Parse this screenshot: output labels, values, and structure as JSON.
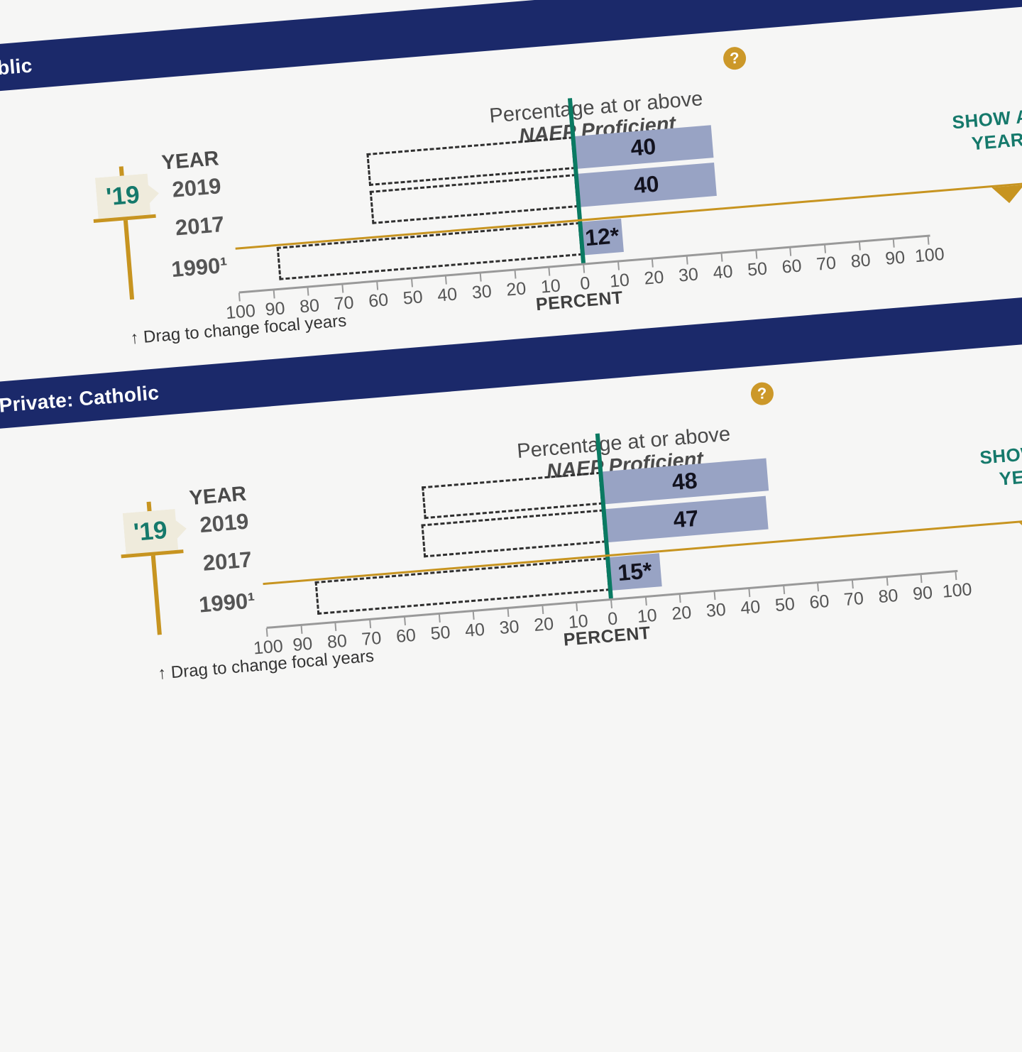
{
  "app": {
    "background": "#F6F6F5"
  },
  "colors": {
    "navy": "#1B296A",
    "gold": "#C79420",
    "gold_icon": "#CC9829",
    "teal_line": "#0A7A62",
    "teal_text": "#15796B",
    "bar_fill": "#98A3C4",
    "bar_label": "#12121E",
    "flag_bg": "#EFEBDC",
    "axis": "#999999",
    "text_gray": "#555555",
    "text_gray2": "#4A4A4A",
    "text_dark": "#3F3F3F"
  },
  "labels": {
    "year_column_header": "YEAR",
    "percent_axis_label": "PERCENT",
    "show_all_years": "SHOW ALL YEARS",
    "drag_hint": "↑ Drag to change focal years",
    "chart_title_line1": "Percentage at or above",
    "chart_title_line2": "NAEP Proficient",
    "help_icon": "?",
    "focal_year_flag": "'19"
  },
  "panels": [
    {
      "title": "Public"
    },
    {
      "title": "Private: Catholic"
    }
  ],
  "chart_data": [
    {
      "type": "bar",
      "orientation": "horizontal",
      "group": "Public",
      "title": "Percentage at or above NAEP Proficient",
      "categories": [
        "2019",
        "2017",
        "1990¹"
      ],
      "values": [
        40,
        40,
        12
      ],
      "value_labels": [
        "40",
        "40",
        "12*"
      ],
      "below_proficient_values": [
        60,
        60,
        88
      ],
      "focal_year": "'19",
      "axis": {
        "label": "PERCENT",
        "range": [
          -100,
          100
        ],
        "tick_step": 10,
        "tick_labels": [
          100,
          90,
          80,
          70,
          60,
          50,
          40,
          30,
          20,
          10,
          0,
          10,
          20,
          30,
          40,
          50,
          60,
          70,
          80,
          90,
          100
        ]
      }
    },
    {
      "type": "bar",
      "orientation": "horizontal",
      "group": "Private: Catholic",
      "title": "Percentage at or above NAEP Proficient",
      "categories": [
        "2019",
        "2017",
        "1990¹"
      ],
      "values": [
        48,
        47,
        15
      ],
      "value_labels": [
        "48",
        "47",
        "15*"
      ],
      "below_proficient_values": [
        52,
        53,
        85
      ],
      "focal_year": "'19",
      "axis": {
        "label": "PERCENT",
        "range": [
          -100,
          100
        ],
        "tick_step": 10,
        "tick_labels": [
          100,
          90,
          80,
          70,
          60,
          50,
          40,
          30,
          20,
          10,
          0,
          10,
          20,
          30,
          40,
          50,
          60,
          70,
          80,
          90,
          100
        ]
      }
    }
  ]
}
